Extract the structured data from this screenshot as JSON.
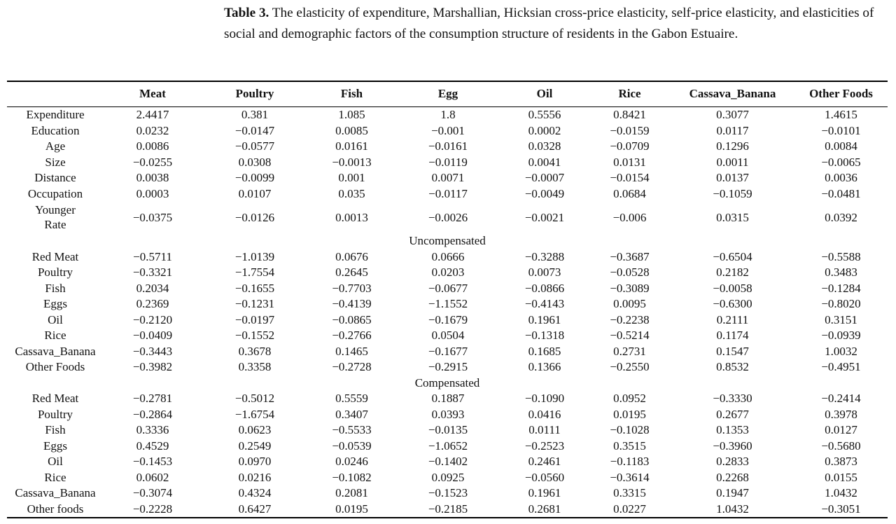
{
  "caption": {
    "label": "Table 3.",
    "text": " The elasticity of expenditure, Marshallian, Hicksian cross-price elasticity, self-price elasticity, and elasticities of social and demographic factors of the consumption structure of residents in the Gabon Estuaire."
  },
  "table": {
    "headers": [
      "",
      "Meat",
      "Poultry",
      "Fish",
      "Egg",
      "Oil",
      "Rice",
      "Cassava_Banana",
      "Other Foods"
    ],
    "top_rows": [
      {
        "label": "Expenditure",
        "values": [
          "2.4417",
          "0.381",
          "1.085",
          "1.8",
          "0.5556",
          "0.8421",
          "0.3077",
          "1.4615"
        ]
      },
      {
        "label": "Education",
        "values": [
          "0.0232",
          "−0.0147",
          "0.0085",
          "−0.001",
          "0.0002",
          "−0.0159",
          "0.0117",
          "−0.0101"
        ]
      },
      {
        "label": "Age",
        "values": [
          "0.0086",
          "−0.0577",
          "0.0161",
          "−0.0161",
          "0.0328",
          "−0.0709",
          "0.1296",
          "0.0084"
        ]
      },
      {
        "label": "Size",
        "values": [
          "−0.0255",
          "0.0308",
          "−0.0013",
          "−0.0119",
          "0.0041",
          "0.0131",
          "0.0011",
          "−0.0065"
        ]
      },
      {
        "label": "Distance",
        "values": [
          "0.0038",
          "−0.0099",
          "0.001",
          "0.0071",
          "−0.0007",
          "−0.0154",
          "0.0137",
          "0.0036"
        ]
      },
      {
        "label": "Occupation",
        "values": [
          "0.0003",
          "0.0107",
          "0.035",
          "−0.0117",
          "−0.0049",
          "0.0684",
          "−0.1059",
          "−0.0481"
        ]
      }
    ],
    "younger_rate": {
      "label_line1": "Younger",
      "label_line2": "Rate",
      "values": [
        "−0.0375",
        "−0.0126",
        "0.0013",
        "−0.0026",
        "−0.0021",
        "−0.006",
        "0.0315",
        "0.0392"
      ]
    },
    "uncompensated": {
      "title": "Uncompensated",
      "rows": [
        {
          "label": "Red Meat",
          "values": [
            "−0.5711",
            "−1.0139",
            "0.0676",
            "0.0666",
            "−0.3288",
            "−0.3687",
            "−0.6504",
            "−0.5588"
          ]
        },
        {
          "label": "Poultry",
          "values": [
            "−0.3321",
            "−1.7554",
            "0.2645",
            "0.0203",
            "0.0073",
            "−0.0528",
            "0.2182",
            "0.3483"
          ]
        },
        {
          "label": "Fish",
          "values": [
            "0.2034",
            "−0.1655",
            "−0.7703",
            "−0.0677",
            "−0.0866",
            "−0.3089",
            "−0.0058",
            "−0.1284"
          ]
        },
        {
          "label": "Eggs",
          "values": [
            "0.2369",
            "−0.1231",
            "−0.4139",
            "−1.1552",
            "−0.4143",
            "0.0095",
            "−0.6300",
            "−0.8020"
          ]
        },
        {
          "label": "Oil",
          "values": [
            "−0.2120",
            "−0.0197",
            "−0.0865",
            "−0.1679",
            "0.1961",
            "−0.2238",
            "0.2111",
            "0.3151"
          ]
        },
        {
          "label": "Rice",
          "values": [
            "−0.0409",
            "−0.1552",
            "−0.2766",
            "0.0504",
            "−0.1318",
            "−0.5214",
            "0.1174",
            "−0.0939"
          ]
        },
        {
          "label": "Cassava_Banana",
          "values": [
            "−0.3443",
            "0.3678",
            "0.1465",
            "−0.1677",
            "0.1685",
            "0.2731",
            "0.1547",
            "1.0032"
          ]
        },
        {
          "label": "Other Foods",
          "values": [
            "−0.3982",
            "0.3358",
            "−0.2728",
            "−0.2915",
            "0.1366",
            "−0.2550",
            "0.8532",
            "−0.4951"
          ]
        }
      ]
    },
    "compensated": {
      "title": "Compensated",
      "rows": [
        {
          "label": "Red Meat",
          "values": [
            "−0.2781",
            "−0.5012",
            "0.5559",
            "0.1887",
            "−0.1090",
            "0.0952",
            "−0.3330",
            "−0.2414"
          ]
        },
        {
          "label": "Poultry",
          "values": [
            "−0.2864",
            "−1.6754",
            "0.3407",
            "0.0393",
            "0.0416",
            "0.0195",
            "0.2677",
            "0.3978"
          ]
        },
        {
          "label": "Fish",
          "values": [
            "0.3336",
            "0.0623",
            "−0.5533",
            "−0.0135",
            "0.0111",
            "−0.1028",
            "0.1353",
            "0.0127"
          ]
        },
        {
          "label": "Eggs",
          "values": [
            "0.4529",
            "0.2549",
            "−0.0539",
            "−1.0652",
            "−0.2523",
            "0.3515",
            "−0.3960",
            "−0.5680"
          ]
        },
        {
          "label": "Oil",
          "values": [
            "−0.1453",
            "0.0970",
            "0.0246",
            "−0.1402",
            "0.2461",
            "−0.1183",
            "0.2833",
            "0.3873"
          ]
        },
        {
          "label": "Rice",
          "values": [
            "0.0602",
            "0.0216",
            "−0.1082",
            "0.0925",
            "−0.0560",
            "−0.3614",
            "0.2268",
            "0.0155"
          ]
        },
        {
          "label": "Cassava_Banana",
          "values": [
            "−0.3074",
            "0.4324",
            "0.2081",
            "−0.1523",
            "0.1961",
            "0.3315",
            "0.1947",
            "1.0432"
          ]
        },
        {
          "label": "Other foods",
          "values": [
            "−0.2228",
            "0.6427",
            "0.0195",
            "−0.2185",
            "0.2681",
            "0.0227",
            "1.0432",
            "−0.3051"
          ]
        }
      ]
    }
  }
}
